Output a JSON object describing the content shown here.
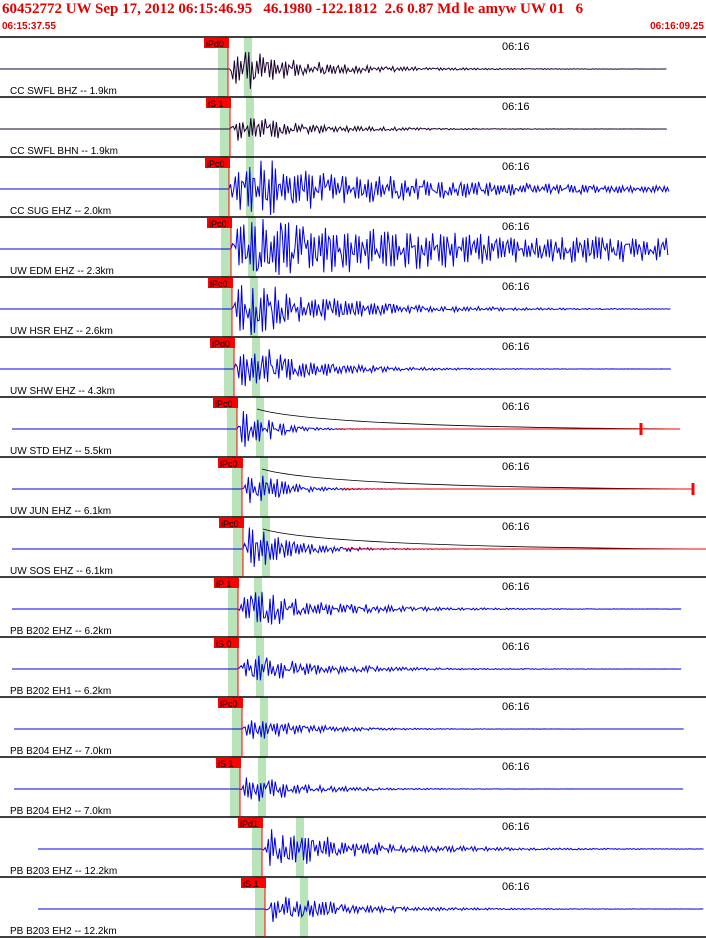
{
  "header": {
    "title": "60452772 UW Sep 17, 2012 06:15:46.95   46.1980 -122.1812  2.6 0.87 Md le amyw UW 01   6",
    "start_time": "06:15:37.55",
    "end_time": "06:16:09.25"
  },
  "colors": {
    "header_red": "#e00000",
    "trace_blue": "#0000e0",
    "trace_dark": "#1a0030",
    "pick_red": "#ff0000",
    "window_green": "#b9e3b9"
  },
  "minute_marker": "06:16",
  "traces": [
    {
      "label": "CC SWFL BHZ -- 1.9km",
      "pick": "iPd0",
      "color": "dark"
    },
    {
      "label": "CC SWFL BHN -- 1.9km",
      "pick": "iS 1",
      "color": "dark"
    },
    {
      "label": "CC SUG EHZ -- 2.0km",
      "pick": "iPc0",
      "color": "blue"
    },
    {
      "label": "UW EDM EHZ -- 2.3km",
      "pick": "iPc0",
      "color": "blue"
    },
    {
      "label": "UW HSR EHZ -- 2.6km",
      "pick": "iPc0",
      "color": "blue"
    },
    {
      "label": "UW SHW EHZ -- 4.3km",
      "pick": "iPd0",
      "color": "blue"
    },
    {
      "label": "UW STD EHZ -- 5.5km",
      "pick": "iPc0",
      "color": "blue"
    },
    {
      "label": "UW JUN EHZ -- 6.1km",
      "pick": "iPc0",
      "color": "blue"
    },
    {
      "label": "UW SOS EHZ -- 6.1km",
      "pick": "iPc0",
      "color": "blue"
    },
    {
      "label": "PB B202 EHZ -- 6.2km",
      "pick": "iP 1",
      "color": "blue"
    },
    {
      "label": "PB B202 EH1 -- 6.2km",
      "pick": "iS 0",
      "color": "blue"
    },
    {
      "label": "PB B204 EHZ -- 7.0km",
      "pick": "iPc0",
      "color": "blue"
    },
    {
      "label": "PB B204 EH2 -- 7.0km",
      "pick": "iS 1",
      "color": "blue"
    },
    {
      "label": "PB B203 EHZ -- 12.2km",
      "pick": "iPd1",
      "color": "blue"
    },
    {
      "label": "PB B203 EH2 -- 12.2km",
      "pick": "iS 1",
      "color": "blue"
    }
  ]
}
